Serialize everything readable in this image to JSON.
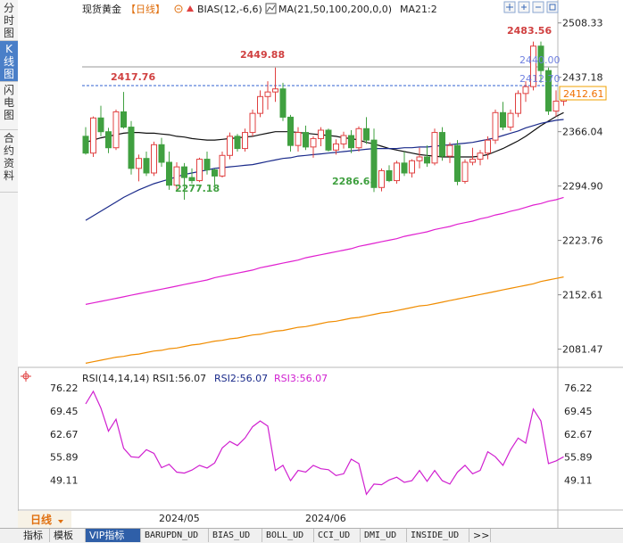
{
  "sidebar": [
    {
      "label": "分时图",
      "active": false
    },
    {
      "label": "K线图",
      "active": true
    },
    {
      "label": "闪电图",
      "active": false
    },
    {
      "label": "合约资料",
      "active": false
    }
  ],
  "header": {
    "symbol": "现货黄金",
    "period": "【日线】",
    "bias": "BIAS(12,-6,6)",
    "ma": "MA(21,50,100,200,0,0)",
    "ma_value": "MA21:2"
  },
  "price_axis": {
    "ticks": [
      "2508.33",
      "2437.18",
      "2366.04",
      "2294.90",
      "2223.76",
      "2152.61",
      "2081.47"
    ],
    "current_price": "2412.61"
  },
  "price_labels": {
    "high_left": "2417.76",
    "high_mid": "2449.88",
    "high_right": "2483.56",
    "low_left": "2277.18",
    "low_mid": "2286.68",
    "guide_upper": "2440.00",
    "guide_lower": "2412.70"
  },
  "rsi": {
    "title": "RSI(14,14,14)",
    "rsi1": "RSI1:56.07",
    "rsi2": "RSI2:56.07",
    "rsi3": "RSI3:56.07",
    "ticks": [
      "76.22",
      "69.45",
      "62.67",
      "55.89",
      "49.11"
    ]
  },
  "time_axis": {
    "period_button": "日线",
    "labels": [
      "2024/05",
      "2024/06"
    ]
  },
  "bottom_tabs": [
    "指标",
    "模板",
    "VIP指标",
    "BARUPDN_UD",
    "BIAS_UD",
    "BOLL_UD",
    "CCI_UD",
    "DMI_UD",
    "INSIDE_UD",
    ">>"
  ],
  "colors": {
    "up": "#e04040",
    "down": "#40a040",
    "ma21": "#101010",
    "ma50": "#1a2a8a",
    "ma100": "#e020d0",
    "ma200": "#f08c00",
    "rsi_line": "#d020d0"
  },
  "chart_data": {
    "type": "candlestick",
    "y_range": [
      2060,
      2515
    ],
    "candles": [
      [
        2360,
        2372,
        2336,
        2338
      ],
      [
        2338,
        2386,
        2333,
        2384
      ],
      [
        2384,
        2400,
        2360,
        2366
      ],
      [
        2366,
        2371,
        2338,
        2345
      ],
      [
        2345,
        2395,
        2342,
        2392
      ],
      [
        2392,
        2418,
        2370,
        2372
      ],
      [
        2372,
        2380,
        2310,
        2318
      ],
      [
        2318,
        2336,
        2301,
        2331
      ],
      [
        2331,
        2340,
        2308,
        2312
      ],
      [
        2312,
        2353,
        2308,
        2349
      ],
      [
        2349,
        2358,
        2320,
        2326
      ],
      [
        2326,
        2340,
        2290,
        2296
      ],
      [
        2296,
        2326,
        2290,
        2320
      ],
      [
        2320,
        2325,
        2277,
        2306
      ],
      [
        2306,
        2318,
        2298,
        2302
      ],
      [
        2302,
        2332,
        2300,
        2330
      ],
      [
        2330,
        2340,
        2310,
        2316
      ],
      [
        2316,
        2318,
        2295,
        2308
      ],
      [
        2308,
        2340,
        2306,
        2335
      ],
      [
        2335,
        2365,
        2330,
        2360
      ],
      [
        2360,
        2363,
        2340,
        2344
      ],
      [
        2344,
        2370,
        2340,
        2365
      ],
      [
        2365,
        2395,
        2360,
        2390
      ],
      [
        2390,
        2420,
        2385,
        2412
      ],
      [
        2412,
        2432,
        2395,
        2418
      ],
      [
        2418,
        2450,
        2405,
        2422
      ],
      [
        2422,
        2430,
        2380,
        2385
      ],
      [
        2385,
        2388,
        2340,
        2348
      ],
      [
        2348,
        2372,
        2340,
        2365
      ],
      [
        2365,
        2374,
        2342,
        2346
      ],
      [
        2346,
        2360,
        2332,
        2357
      ],
      [
        2357,
        2372,
        2347,
        2368
      ],
      [
        2368,
        2370,
        2340,
        2342
      ],
      [
        2342,
        2356,
        2336,
        2350
      ],
      [
        2350,
        2366,
        2344,
        2361
      ],
      [
        2361,
        2368,
        2338,
        2345
      ],
      [
        2345,
        2373,
        2340,
        2370
      ],
      [
        2370,
        2385,
        2350,
        2355
      ],
      [
        2355,
        2370,
        2287,
        2293
      ],
      [
        2293,
        2318,
        2288,
        2315
      ],
      [
        2315,
        2322,
        2300,
        2302
      ],
      [
        2302,
        2328,
        2298,
        2325
      ],
      [
        2325,
        2340,
        2308,
        2312
      ],
      [
        2312,
        2330,
        2306,
        2328
      ],
      [
        2328,
        2345,
        2318,
        2333
      ],
      [
        2333,
        2348,
        2320,
        2325
      ],
      [
        2325,
        2370,
        2322,
        2365
      ],
      [
        2365,
        2372,
        2328,
        2334
      ],
      [
        2334,
        2352,
        2325,
        2348
      ],
      [
        2348,
        2355,
        2296,
        2301
      ],
      [
        2301,
        2330,
        2298,
        2326
      ],
      [
        2326,
        2345,
        2322,
        2330
      ],
      [
        2330,
        2342,
        2322,
        2338
      ],
      [
        2338,
        2360,
        2330,
        2355
      ],
      [
        2355,
        2395,
        2350,
        2391
      ],
      [
        2391,
        2405,
        2368,
        2372
      ],
      [
        2372,
        2395,
        2367,
        2390
      ],
      [
        2390,
        2420,
        2385,
        2416
      ],
      [
        2416,
        2432,
        2405,
        2425
      ],
      [
        2425,
        2484,
        2420,
        2478
      ],
      [
        2478,
        2484,
        2430,
        2446
      ],
      [
        2446,
        2450,
        2388,
        2393
      ],
      [
        2393,
        2420,
        2386,
        2406
      ],
      [
        2406,
        2415,
        2400,
        2412
      ]
    ],
    "ma21": [
      2352,
      2355,
      2358,
      2360,
      2362,
      2364,
      2365,
      2365,
      2364,
      2364,
      2363,
      2362,
      2360,
      2359,
      2357,
      2356,
      2355,
      2355,
      2356,
      2357,
      2358,
      2359,
      2360,
      2362,
      2364,
      2366,
      2366,
      2366,
      2365,
      2364,
      2363,
      2362,
      2361,
      2360,
      2358,
      2357,
      2355,
      2352,
      2350,
      2347,
      2344,
      2342,
      2340,
      2338,
      2336,
      2335,
      2334,
      2333,
      2333,
      2333,
      2333,
      2333,
      2334,
      2336,
      2340,
      2344,
      2349,
      2354,
      2360,
      2367,
      2374,
      2380,
      2386,
      2391
    ],
    "ma50": [
      2250,
      2256,
      2262,
      2268,
      2274,
      2280,
      2285,
      2290,
      2294,
      2298,
      2301,
      2304,
      2307,
      2310,
      2312,
      2314,
      2316,
      2318,
      2319,
      2320,
      2321,
      2322,
      2323,
      2325,
      2327,
      2329,
      2331,
      2332,
      2334,
      2335,
      2336,
      2337,
      2338,
      2339,
      2340,
      2341,
      2342,
      2343,
      2344,
      2344,
      2344,
      2344,
      2345,
      2345,
      2346,
      2346,
      2347,
      2348,
      2349,
      2350,
      2351,
      2352,
      2354,
      2356,
      2358,
      2361,
      2364,
      2367,
      2371,
      2374,
      2377,
      2379,
      2381,
      2382
    ],
    "ma100": [
      2140,
      2142,
      2144,
      2146,
      2148,
      2150,
      2152,
      2154,
      2156,
      2158,
      2160,
      2162,
      2164,
      2166,
      2168,
      2170,
      2172,
      2175,
      2177,
      2179,
      2181,
      2183,
      2185,
      2188,
      2190,
      2192,
      2194,
      2196,
      2198,
      2201,
      2203,
      2205,
      2207,
      2209,
      2211,
      2213,
      2216,
      2218,
      2220,
      2222,
      2224,
      2226,
      2229,
      2231,
      2233,
      2235,
      2238,
      2240,
      2242,
      2245,
      2247,
      2249,
      2252,
      2254,
      2257,
      2259,
      2262,
      2264,
      2267,
      2270,
      2272,
      2275,
      2277,
      2280
    ],
    "ma200": [
      2063,
      2065,
      2067,
      2069,
      2071,
      2072,
      2074,
      2075,
      2077,
      2079,
      2080,
      2082,
      2083,
      2085,
      2087,
      2088,
      2090,
      2092,
      2093,
      2095,
      2096,
      2098,
      2100,
      2101,
      2103,
      2105,
      2106,
      2108,
      2110,
      2111,
      2113,
      2115,
      2117,
      2118,
      2120,
      2122,
      2123,
      2125,
      2127,
      2129,
      2130,
      2132,
      2134,
      2136,
      2138,
      2139,
      2141,
      2143,
      2145,
      2147,
      2149,
      2151,
      2153,
      2155,
      2157,
      2159,
      2161,
      2163,
      2165,
      2167,
      2170,
      2172,
      2174,
      2176
    ],
    "rsi": [
      71.5,
      75.2,
      70.3,
      63.5,
      67.0,
      58.5,
      56.0,
      55.8,
      58.1,
      57.0,
      52.8,
      53.8,
      51.5,
      51.2,
      52.1,
      53.5,
      52.7,
      54.2,
      58.6,
      60.5,
      59.3,
      61.5,
      64.8,
      66.5,
      65.0,
      52.0,
      53.5,
      49.0,
      52.0,
      51.5,
      53.5,
      52.5,
      52.2,
      50.5,
      51.0,
      55.3,
      54.0,
      45.0,
      48.0,
      47.8,
      49.2,
      50.0,
      48.5,
      49.0,
      52.0,
      48.8,
      52.0,
      49.0,
      48.0,
      51.5,
      53.5,
      51.0,
      52.0,
      57.5,
      56.0,
      53.5,
      58.0,
      61.5,
      60.0,
      70.0,
      66.5,
      54.0,
      54.8,
      56.0
    ],
    "rsi_range": [
      43,
      77
    ]
  }
}
